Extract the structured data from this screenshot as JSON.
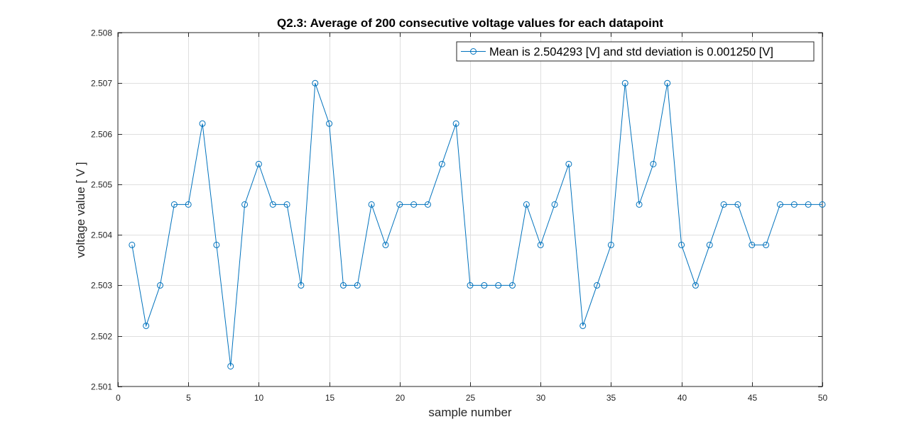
{
  "chart_data": {
    "type": "line",
    "title": "Q2.3: Average of 200 consecutive voltage values for each datapoint",
    "xlabel": "sample number",
    "ylabel": "voltage value [ V ]",
    "xlim": [
      0,
      50
    ],
    "ylim": [
      2.501,
      2.508
    ],
    "xticks": [
      0,
      5,
      10,
      15,
      20,
      25,
      30,
      35,
      40,
      45,
      50
    ],
    "yticks": [
      2.501,
      2.502,
      2.503,
      2.504,
      2.505,
      2.506,
      2.507,
      2.508
    ],
    "ytick_labels": [
      "2.501",
      "2.502",
      "2.503",
      "2.504",
      "2.505",
      "2.506",
      "2.507",
      "2.508"
    ],
    "grid": true,
    "legend_position": "top-right",
    "marker": "open-circle",
    "color": "#0072BD",
    "series": [
      {
        "name": "Mean is 2.504293 [V] and std deviation is 0.001250 [V]",
        "x": [
          1,
          2,
          3,
          4,
          5,
          6,
          7,
          8,
          9,
          10,
          11,
          12,
          13,
          14,
          15,
          16,
          17,
          18,
          19,
          20,
          21,
          22,
          23,
          24,
          25,
          26,
          27,
          28,
          29,
          30,
          31,
          32,
          33,
          34,
          35,
          36,
          37,
          38,
          39,
          40,
          41,
          42,
          43,
          44,
          45,
          46,
          47,
          48,
          49,
          50
        ],
        "values": [
          2.5038,
          2.5022,
          2.503,
          2.5046,
          2.5046,
          2.5062,
          2.5038,
          2.5014,
          2.5046,
          2.5054,
          2.5046,
          2.5046,
          2.503,
          2.507,
          2.5062,
          2.503,
          2.503,
          2.5046,
          2.5038,
          2.5046,
          2.5046,
          2.5046,
          2.5054,
          2.5062,
          2.503,
          2.503,
          2.503,
          2.503,
          2.5046,
          2.5038,
          2.5046,
          2.5054,
          2.5022,
          2.503,
          2.5038,
          2.507,
          2.5046,
          2.5054,
          2.507,
          2.5038,
          2.503,
          2.5038,
          2.5046,
          2.5046,
          2.5038,
          2.5038,
          2.5046,
          2.5046,
          2.5046,
          2.5046
        ]
      }
    ]
  }
}
